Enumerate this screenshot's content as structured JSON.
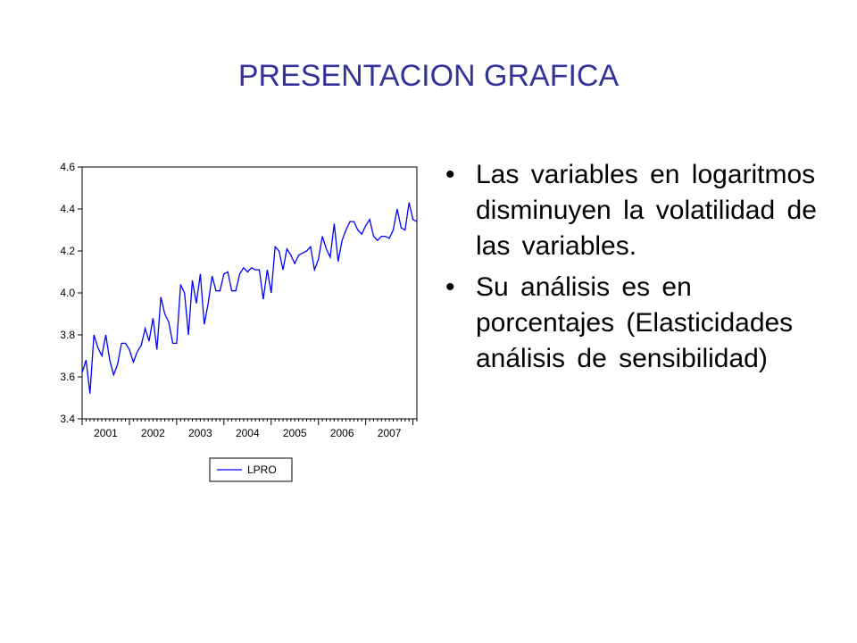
{
  "slide": {
    "title": "PRESENTACION GRAFICA",
    "bullets": [
      "Las variables en logaritmos disminuyen la volatilidad de las variables.",
      "Su análisis es en porcentajes (Elasticidades análisis de sensibilidad)"
    ]
  },
  "chart_data": {
    "type": "line",
    "title": "",
    "xlabel": "",
    "ylabel": "",
    "ylim": [
      3.4,
      4.6
    ],
    "yticks": [
      "3.4",
      "3.6",
      "3.8",
      "4.0",
      "4.2",
      "4.4",
      "4.6"
    ],
    "xticks": [
      "2001",
      "2002",
      "2003",
      "2004",
      "2005",
      "2006",
      "2007"
    ],
    "x_start_year": 2001,
    "frequency": "monthly",
    "legend": "bottom-center",
    "grid": false,
    "series": [
      {
        "name": "LPRO",
        "color": "#0000FF",
        "values": [
          3.62,
          3.68,
          3.52,
          3.8,
          3.74,
          3.7,
          3.8,
          3.68,
          3.61,
          3.66,
          3.76,
          3.76,
          3.73,
          3.67,
          3.72,
          3.75,
          3.83,
          3.77,
          3.88,
          3.73,
          3.98,
          3.9,
          3.86,
          3.76,
          3.76,
          4.04,
          4.0,
          3.8,
          4.06,
          3.95,
          4.09,
          3.85,
          3.95,
          4.08,
          4.01,
          4.01,
          4.09,
          4.1,
          4.01,
          4.01,
          4.09,
          4.12,
          4.1,
          4.12,
          4.11,
          4.11,
          3.97,
          4.11,
          4.0,
          4.22,
          4.2,
          4.11,
          4.21,
          4.18,
          4.14,
          4.18,
          4.19,
          4.2,
          4.22,
          4.11,
          4.16,
          4.27,
          4.21,
          4.17,
          4.33,
          4.15,
          4.25,
          4.3,
          4.34,
          4.34,
          4.3,
          4.28,
          4.32,
          4.35,
          4.27,
          4.25,
          4.27,
          4.27,
          4.26,
          4.3,
          4.4,
          4.31,
          4.3,
          4.43,
          4.35,
          4.34
        ]
      }
    ]
  }
}
